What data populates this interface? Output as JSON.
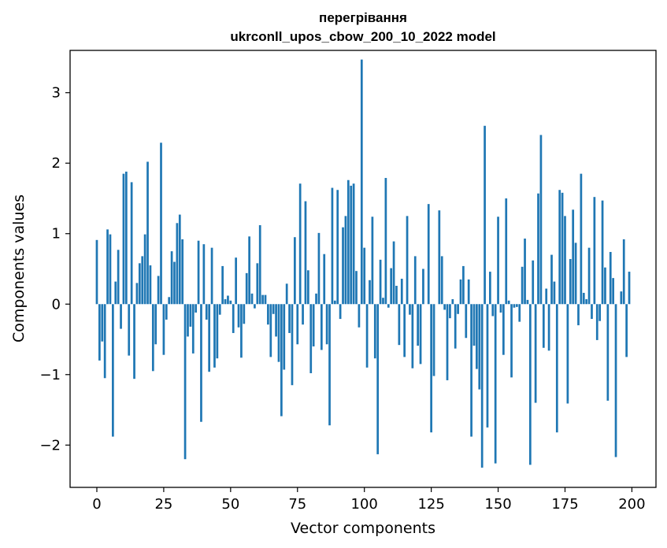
{
  "chart_data": {
    "type": "bar",
    "title": "перегрівання",
    "subtitle": "ukrconll_upos_cbow_200_10_2022 model",
    "xlabel": "Vector components",
    "ylabel": "Components values",
    "xlim": [
      -10,
      209
    ],
    "ylim": [
      -2.6,
      3.6
    ],
    "xticks": [
      0,
      25,
      50,
      75,
      100,
      125,
      150,
      175,
      200
    ],
    "yticks": [
      -2,
      -1,
      0,
      1,
      2,
      3
    ],
    "ytick_labels": [
      "−2",
      "−1",
      "0",
      "1",
      "2",
      "3"
    ],
    "grid": false,
    "color": "#1f77b4",
    "x": [
      0,
      1,
      2,
      3,
      4,
      5,
      6,
      7,
      8,
      9,
      10,
      11,
      12,
      13,
      14,
      15,
      16,
      17,
      18,
      19,
      20,
      21,
      22,
      23,
      24,
      25,
      26,
      27,
      28,
      29,
      30,
      31,
      32,
      33,
      34,
      35,
      36,
      37,
      38,
      39,
      40,
      41,
      42,
      43,
      44,
      45,
      46,
      47,
      48,
      49,
      50,
      51,
      52,
      53,
      54,
      55,
      56,
      57,
      58,
      59,
      60,
      61,
      62,
      63,
      64,
      65,
      66,
      67,
      68,
      69,
      70,
      71,
      72,
      73,
      74,
      75,
      76,
      77,
      78,
      79,
      80,
      81,
      82,
      83,
      84,
      85,
      86,
      87,
      88,
      89,
      90,
      91,
      92,
      93,
      94,
      95,
      96,
      97,
      98,
      99,
      100,
      101,
      102,
      103,
      104,
      105,
      106,
      107,
      108,
      109,
      110,
      111,
      112,
      113,
      114,
      115,
      116,
      117,
      118,
      119,
      120,
      121,
      122,
      123,
      124,
      125,
      126,
      127,
      128,
      129,
      130,
      131,
      132,
      133,
      134,
      135,
      136,
      137,
      138,
      139,
      140,
      141,
      142,
      143,
      144,
      145,
      146,
      147,
      148,
      149,
      150,
      151,
      152,
      153,
      154,
      155,
      156,
      157,
      158,
      159,
      160,
      161,
      162,
      163,
      164,
      165,
      166,
      167,
      168,
      169,
      170,
      171,
      172,
      173,
      174,
      175,
      176,
      177,
      178,
      179,
      180,
      181,
      182,
      183,
      184,
      185,
      186,
      187,
      188,
      189,
      190,
      191,
      192,
      193,
      194,
      195,
      196,
      197,
      198,
      199
    ],
    "values": [
      0.91,
      -0.8,
      -0.53,
      -1.05,
      1.06,
      0.99,
      -1.88,
      0.32,
      0.77,
      -0.35,
      1.85,
      1.88,
      -0.73,
      1.73,
      -1.06,
      0.3,
      0.58,
      0.68,
      0.99,
      2.02,
      0.55,
      -0.95,
      -0.57,
      0.4,
      2.29,
      -0.72,
      -0.22,
      0.1,
      0.75,
      0.6,
      1.15,
      1.27,
      0.92,
      -2.2,
      -0.46,
      -0.32,
      -0.7,
      -0.12,
      0.9,
      -1.67,
      0.85,
      -0.22,
      -0.96,
      0.8,
      -0.9,
      -0.77,
      -0.15,
      0.54,
      0.07,
      0.12,
      0.05,
      -0.41,
      0.66,
      -0.33,
      -0.76,
      -0.28,
      0.44,
      0.96,
      0.15,
      -0.06,
      0.58,
      1.12,
      0.13,
      0.13,
      -0.29,
      -0.75,
      -0.14,
      -0.46,
      -0.82,
      -1.59,
      -0.93,
      0.29,
      -0.41,
      -1.15,
      0.95,
      -0.57,
      1.71,
      -0.29,
      1.46,
      0.48,
      -0.98,
      -0.6,
      0.15,
      1.01,
      -0.65,
      0.71,
      -0.57,
      -1.72,
      1.65,
      0.05,
      1.62,
      -0.21,
      1.09,
      1.25,
      1.76,
      1.68,
      1.71,
      0.47,
      -0.33,
      3.47,
      0.8,
      -0.9,
      0.34,
      1.24,
      -0.77,
      -2.13,
      0.63,
      0.09,
      1.79,
      -0.05,
      0.51,
      0.89,
      0.26,
      -0.58,
      0.36,
      -0.75,
      1.25,
      -0.15,
      -0.91,
      0.68,
      -0.59,
      -0.85,
      0.5,
      0.0,
      1.42,
      -1.82,
      -1.02,
      0.0,
      1.33,
      0.68,
      -0.08,
      -1.08,
      -0.2,
      0.07,
      -0.63,
      -0.14,
      0.35,
      0.54,
      -0.48,
      0.35,
      -1.88,
      -0.59,
      -0.92,
      -1.21,
      -2.32,
      2.53,
      -1.75,
      0.46,
      -0.17,
      -2.26,
      1.24,
      -0.12,
      -0.72,
      1.5,
      0.05,
      -1.04,
      -0.05,
      -0.04,
      -0.25,
      0.53,
      0.93,
      0.06,
      -2.28,
      0.62,
      -1.4,
      1.57,
      2.4,
      -0.62,
      0.22,
      -0.66,
      0.7,
      0.32,
      -1.82,
      1.62,
      1.58,
      1.25,
      -1.41,
      0.64,
      1.34,
      0.87,
      -0.3,
      1.85,
      0.16,
      0.07,
      0.8,
      -0.21,
      1.52,
      -0.51,
      -0.24,
      1.47,
      0.52,
      -1.37,
      0.74,
      0.37,
      -2.17,
      0.0,
      0.18,
      0.92,
      -0.75,
      0.46
    ]
  }
}
